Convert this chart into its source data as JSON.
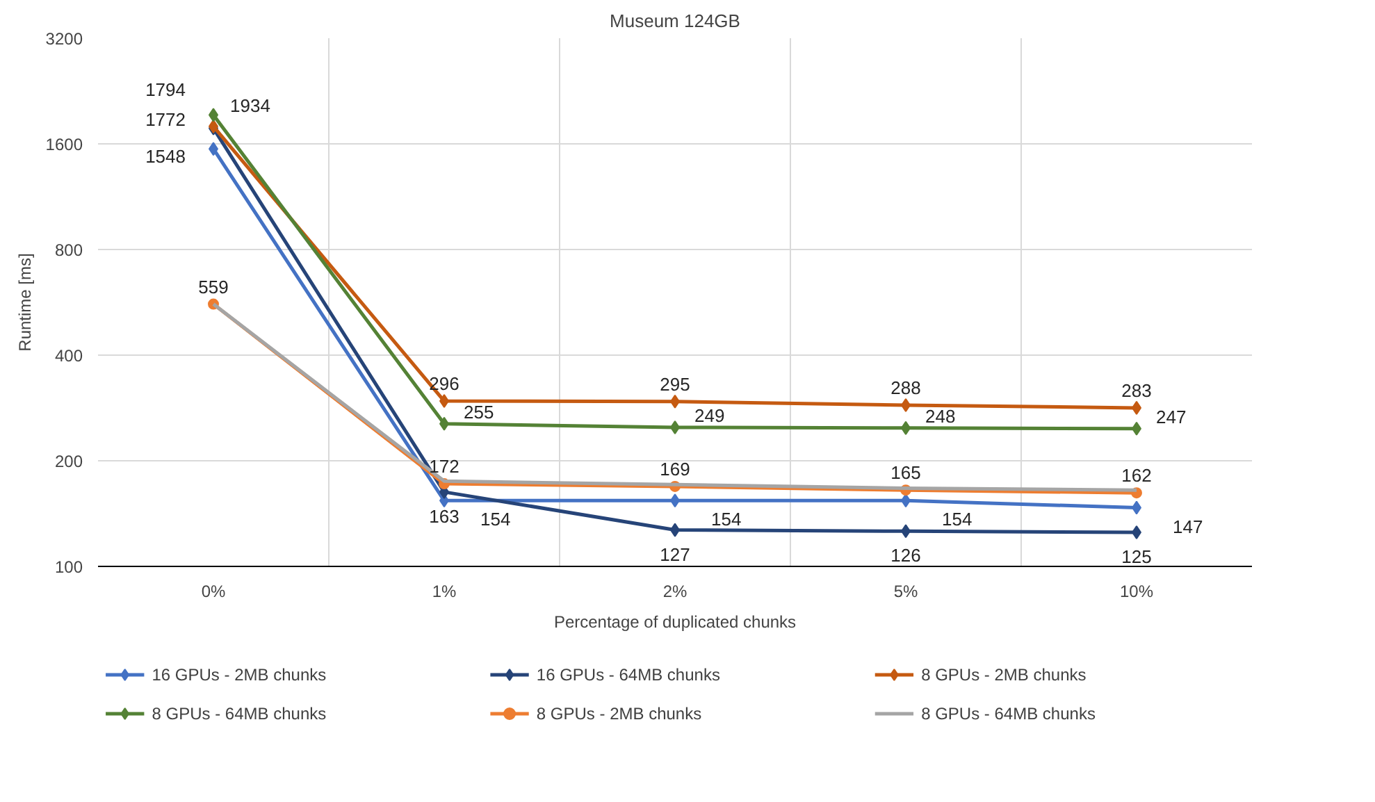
{
  "chart_data": {
    "type": "line",
    "title": "Museum 124GB",
    "xlabel": "Percentage of duplicated chunks",
    "ylabel": "Runtime [ms]",
    "categories": [
      "0%",
      "1%",
      "2%",
      "5%",
      "10%"
    ],
    "log": "y",
    "ylim": [
      100,
      3200
    ],
    "yticks": [
      100,
      200,
      400,
      800,
      1600,
      3200
    ],
    "grid": true,
    "legend": "bottom",
    "line_style": "solid",
    "series": [
      {
        "name": "16 GPUs - 2MB  chunks",
        "color": "#4472c4",
        "marker": "diamond",
        "values": [
          1548,
          154,
          154,
          154,
          147
        ],
        "value_labels": [
          "1548",
          "154",
          "154",
          "154",
          "147"
        ]
      },
      {
        "name": "16 GPUs - 64MB  chunks",
        "color": "#264478",
        "marker": "diamond",
        "values": [
          1772,
          163,
          127,
          126,
          125
        ],
        "value_labels": [
          "1772",
          "163",
          "127",
          "126",
          "125"
        ]
      },
      {
        "name": "8 GPUs - 2MB  chunks",
        "color": "#c55a11",
        "marker": "diamond",
        "values": [
          1794,
          296,
          295,
          288,
          283
        ],
        "value_labels": [
          "1794",
          "296",
          "295",
          "288",
          "283"
        ]
      },
      {
        "name": "8 GPUs - 64MB  chunks",
        "color": "#548235",
        "marker": "diamond",
        "values": [
          1934,
          255,
          249,
          248,
          247
        ],
        "value_labels": [
          "1934",
          "255",
          "249",
          "248",
          "247"
        ]
      },
      {
        "name": "8 GPUs - 2MB  chunks",
        "color": "#ed7d31",
        "marker": "circle",
        "values": [
          559,
          172,
          169,
          165,
          162
        ],
        "value_labels": [
          "559",
          "172",
          "169",
          "165",
          "162"
        ]
      },
      {
        "name": "8 GPUs - 64MB  chunks",
        "color": "#a5a5a5",
        "marker": "none",
        "values": [
          559,
          175,
          171,
          167,
          165
        ]
      }
    ]
  }
}
